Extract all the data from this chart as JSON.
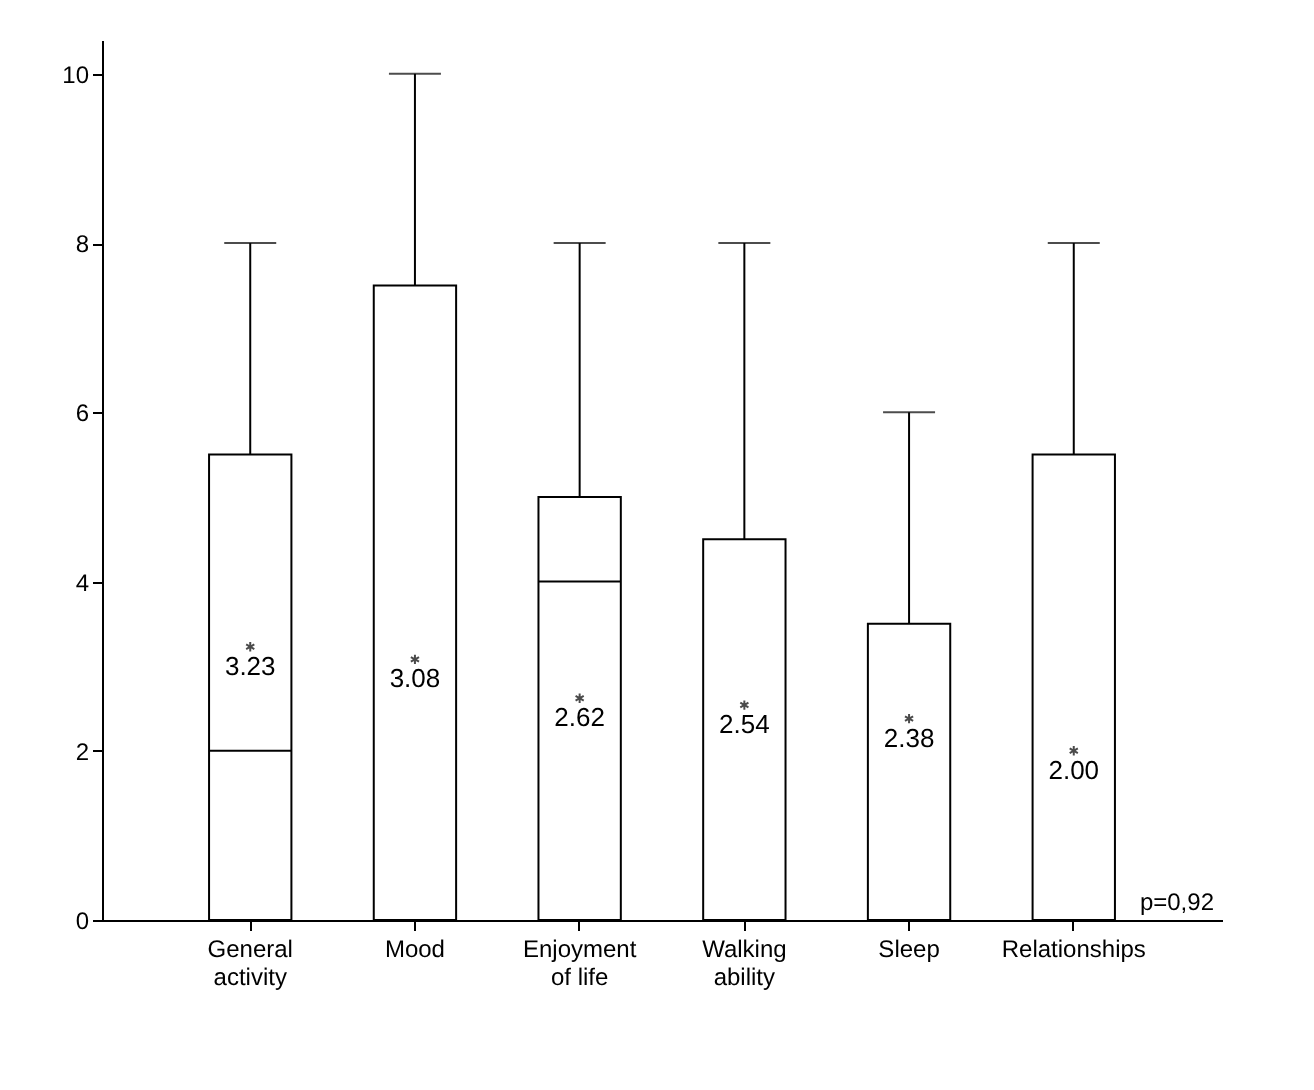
{
  "chart_data": {
    "type": "box",
    "categories": [
      "General activity",
      "Mood",
      "Enjoyment of life",
      "Walking ability",
      "Sleep",
      "Relationships"
    ],
    "boxes": [
      {
        "low": 0,
        "q1": 0,
        "median": 2,
        "q3": 5.5,
        "high": 8,
        "mean": 3.23
      },
      {
        "low": 0,
        "q1": 0,
        "median": 0,
        "q3": 7.5,
        "high": 10,
        "mean": 3.08
      },
      {
        "low": 0,
        "q1": 0,
        "median": 4,
        "q3": 5,
        "high": 8,
        "mean": 2.62
      },
      {
        "low": 0,
        "q1": 0,
        "median": 0,
        "q3": 4.5,
        "high": 8,
        "mean": 2.54
      },
      {
        "low": 0,
        "q1": 0,
        "median": 0,
        "q3": 3.5,
        "high": 6,
        "mean": 2.38
      },
      {
        "low": 0,
        "q1": 0,
        "median": 0,
        "q3": 5.5,
        "high": 8,
        "mean": 2.0
      }
    ],
    "value_labels": [
      "3.23",
      "3.08",
      "2.62",
      "2.54",
      "2.38",
      "2.00"
    ],
    "marker": "star",
    "ylim": [
      0,
      10.4
    ],
    "yticks": [
      0,
      2,
      4,
      6,
      8,
      10
    ],
    "grid": false,
    "annotations": [
      "p=0,92"
    ]
  }
}
